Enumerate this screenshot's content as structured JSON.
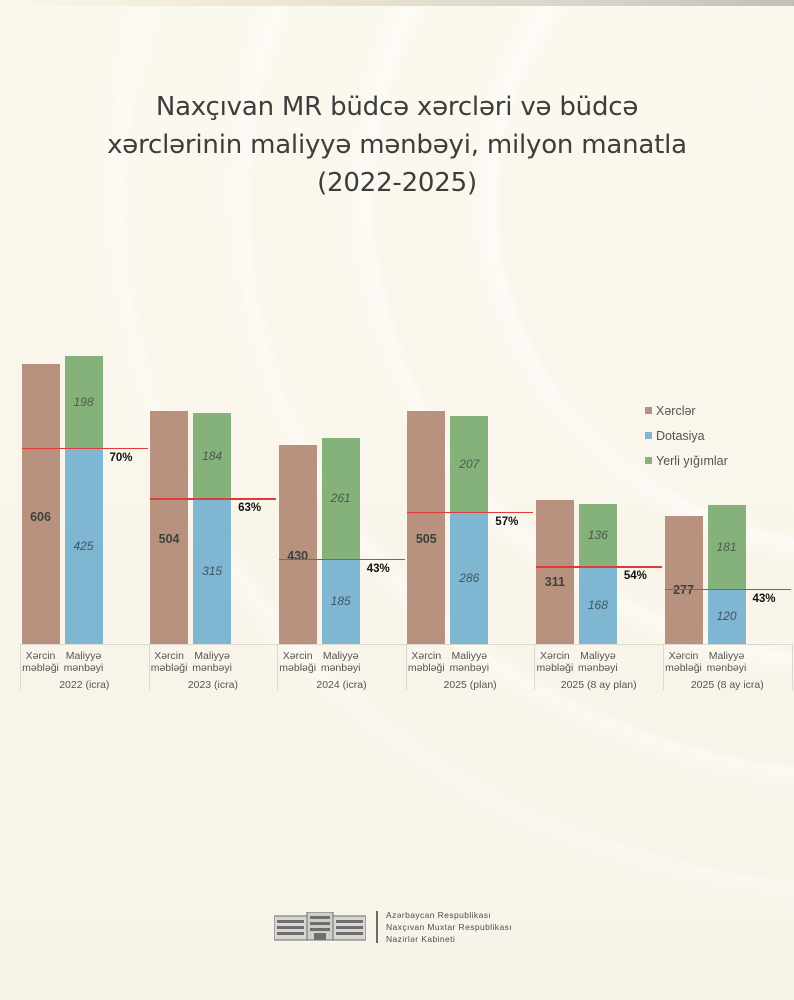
{
  "header": {
    "title_lines": [
      "Naxçıvan MR büdcə xərcləri və büdcə",
      "xərclərinin maliyyə mənbəyi, milyon manatla",
      "(2022-2025)"
    ]
  },
  "legend": {
    "items": [
      {
        "label": "Xərclər",
        "color": "#b9927f"
      },
      {
        "label": "Dotasiya",
        "color": "#7fb6d1"
      },
      {
        "label": "Yerli yığımlar",
        "color": "#84b27a"
      }
    ]
  },
  "axis": {
    "bar_labels": [
      "Xərcin məbləği",
      "Maliyyə mənbəyi"
    ],
    "bar_label_lines": [
      [
        "Xərcin",
        "məbləği"
      ],
      [
        "Maliyyə",
        "mənbəyi"
      ]
    ]
  },
  "footer": {
    "lines": [
      "Azərbaycan Respublikası",
      "Naxçıvan Muxtar Respublikası",
      "Nazirlər Kabineti"
    ]
  },
  "chart_data": {
    "type": "bar",
    "title": "Naxçıvan MR büdcə xərcləri və büdcə xərclərinin maliyyə mənbəyi, milyon manatla (2022-2025)",
    "xlabel": "",
    "ylabel": "milyon manat",
    "ylim": [
      0,
      650
    ],
    "grid": false,
    "legend_position": "right",
    "categories": [
      "2022 (icra)",
      "2023 (icra)",
      "2024 (icra)",
      "2025 (plan)",
      "2025 (8 ay plan)",
      "2025 (8 ay icra)"
    ],
    "series": [
      {
        "name": "Xərclər",
        "bar": "Xərcin məbləği",
        "color": "#b9927f",
        "values": [
          606,
          504,
          430,
          505,
          311,
          277
        ]
      },
      {
        "name": "Dotasiya",
        "bar": "Maliyyə mənbəyi",
        "stack": "finance",
        "color": "#7fb6d1",
        "values": [
          425,
          315,
          185,
          286,
          168,
          120
        ]
      },
      {
        "name": "Yerli yığımlar",
        "bar": "Maliyyə mənbəyi",
        "stack": "finance",
        "color": "#84b27a",
        "values": [
          198,
          184,
          261,
          207,
          136,
          181
        ]
      }
    ],
    "annotations": {
      "dotasiya_share_pct": [
        "70%",
        "63%",
        "43%",
        "57%",
        "54%",
        "43%"
      ],
      "note": "Red line marks the top of the Dotasiya segment; label shows its share."
    }
  }
}
